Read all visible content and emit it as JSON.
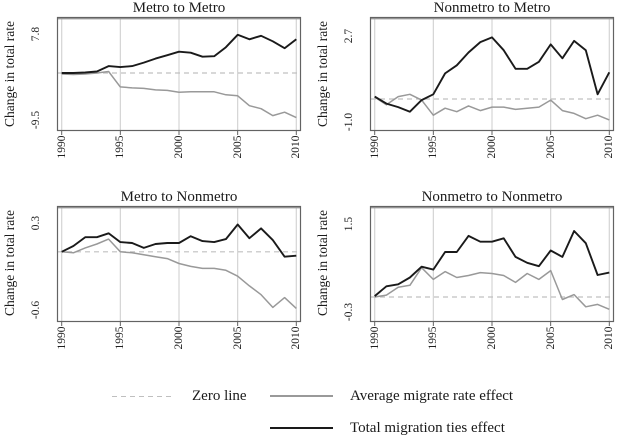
{
  "figure_title": "",
  "colors": {
    "background": "#ffffff",
    "grid": "#d4d4d4",
    "zero_line": "#c0c0c0",
    "frame": "#636363",
    "frame_top": "#9a9a9a",
    "series_total": "#1a1a1a",
    "series_average": "#999999",
    "text": "#1a1a1a"
  },
  "legend": {
    "position": "bottom",
    "items": [
      {
        "label": "Zero line",
        "style": "dashed",
        "color": "#bfbfbf"
      },
      {
        "label": "Average migrate rate effect",
        "style": "solid",
        "color": "#999999"
      },
      {
        "label": "Total migration ties effect",
        "style": "solid",
        "color": "#1a1a1a"
      }
    ]
  },
  "chart_data": [
    {
      "type": "line",
      "title": "Metro to Metro",
      "xlabel": "",
      "ylabel": "Change in total rate",
      "grid": "vertical",
      "zero_line": true,
      "xlim": [
        1989.6,
        2010.4
      ],
      "ylim": [
        -11.7,
        11.3
      ],
      "x_ticks": [
        1990,
        1995,
        2000,
        2005,
        2010
      ],
      "y_ticks": [
        {
          "value": 7.8,
          "label": "7.8"
        },
        {
          "value": -9.5,
          "label": "-9.5"
        }
      ],
      "x": [
        1990,
        1991,
        1992,
        1993,
        1994,
        1995,
        1996,
        1997,
        1998,
        1999,
        2000,
        2001,
        2002,
        2003,
        2004,
        2005,
        2006,
        2007,
        2008,
        2009,
        2010
      ],
      "series": [
        {
          "name": "Average migrate rate effect",
          "color": "#999999",
          "width": 1.5,
          "values": [
            -0.2,
            -0.3,
            -0.2,
            0.0,
            0.3,
            -2.8,
            -3.0,
            -3.1,
            -3.4,
            -3.5,
            -3.9,
            -3.8,
            -3.8,
            -3.8,
            -4.4,
            -4.6,
            -6.6,
            -7.2,
            -8.6,
            -7.9,
            -9.0
          ]
        },
        {
          "name": "Total migration ties effect",
          "color": "#1a1a1a",
          "width": 1.9,
          "values": [
            0.0,
            0.0,
            0.1,
            0.3,
            1.4,
            1.2,
            1.4,
            2.1,
            2.9,
            3.6,
            4.3,
            4.1,
            3.3,
            3.4,
            5.2,
            7.7,
            6.8,
            7.5,
            6.4,
            5.0,
            6.8
          ]
        }
      ]
    },
    {
      "type": "line",
      "title": "Nonmetro to Metro",
      "xlabel": "",
      "ylabel": "Change in total rate",
      "grid": "vertical",
      "zero_line": true,
      "xlim": [
        1989.6,
        2010.4
      ],
      "ylim": [
        -1.38,
        3.53
      ],
      "x_ticks": [
        1990,
        1995,
        2000,
        2005,
        2010
      ],
      "y_ticks": [
        {
          "value": 2.7,
          "label": "2.7"
        },
        {
          "value": -1.0,
          "label": "-1.0"
        }
      ],
      "x": [
        1990,
        1991,
        1992,
        1993,
        1994,
        1995,
        1996,
        1997,
        1998,
        1999,
        2000,
        2001,
        2002,
        2003,
        2004,
        2005,
        2006,
        2007,
        2008,
        2009,
        2010
      ],
      "series": [
        {
          "name": "Average migrate rate effect",
          "color": "#999999",
          "width": 1.5,
          "values": [
            0.08,
            -0.25,
            0.1,
            0.2,
            -0.05,
            -0.7,
            -0.4,
            -0.55,
            -0.3,
            -0.5,
            -0.35,
            -0.35,
            -0.45,
            -0.4,
            -0.35,
            -0.05,
            -0.5,
            -0.62,
            -0.85,
            -0.7,
            -0.9
          ]
        },
        {
          "name": "Total migration ties effect",
          "color": "#1a1a1a",
          "width": 1.9,
          "values": [
            0.1,
            -0.2,
            -0.35,
            -0.55,
            -0.05,
            0.2,
            1.1,
            1.45,
            2.0,
            2.45,
            2.65,
            2.1,
            1.3,
            1.3,
            1.6,
            2.35,
            1.75,
            2.5,
            2.1,
            0.2,
            1.15
          ]
        }
      ]
    },
    {
      "type": "line",
      "title": "Metro to Nonmetro",
      "xlabel": "",
      "ylabel": "Change in total rate",
      "grid": "vertical",
      "zero_line": true,
      "xlim": [
        1989.6,
        2010.4
      ],
      "ylim": [
        -0.72,
        0.47
      ],
      "x_ticks": [
        1990,
        1995,
        2000,
        2005,
        2010
      ],
      "y_ticks": [
        {
          "value": 0.3,
          "label": "0.3"
        },
        {
          "value": -0.6,
          "label": "-0.6"
        }
      ],
      "x": [
        1990,
        1991,
        1992,
        1993,
        1994,
        1995,
        1996,
        1997,
        1998,
        1999,
        2000,
        2001,
        2002,
        2003,
        2004,
        2005,
        2006,
        2007,
        2008,
        2009,
        2010
      ],
      "series": [
        {
          "name": "Average migrate rate effect",
          "color": "#999999",
          "width": 1.5,
          "values": [
            0.0,
            -0.01,
            0.04,
            0.08,
            0.13,
            0.0,
            -0.01,
            -0.03,
            -0.05,
            -0.07,
            -0.12,
            -0.15,
            -0.17,
            -0.17,
            -0.19,
            -0.25,
            -0.35,
            -0.44,
            -0.57,
            -0.47,
            -0.58
          ]
        },
        {
          "name": "Total migration ties effect",
          "color": "#1a1a1a",
          "width": 1.9,
          "values": [
            0.0,
            0.06,
            0.15,
            0.15,
            0.19,
            0.1,
            0.09,
            0.04,
            0.08,
            0.09,
            0.09,
            0.16,
            0.11,
            0.1,
            0.13,
            0.28,
            0.14,
            0.24,
            0.12,
            -0.05,
            -0.04
          ]
        }
      ]
    },
    {
      "type": "line",
      "title": "Nonmetro to Nonmetro",
      "xlabel": "",
      "ylabel": "Change in total rate",
      "grid": "vertical",
      "zero_line": true,
      "xlim": [
        1989.6,
        2010.4
      ],
      "ylim": [
        -0.51,
        1.86
      ],
      "x_ticks": [
        1990,
        1995,
        2000,
        2005,
        2010
      ],
      "y_ticks": [
        {
          "value": 1.5,
          "label": "1.5"
        },
        {
          "value": -0.3,
          "label": "-0.3"
        }
      ],
      "x": [
        1990,
        1991,
        1992,
        1993,
        1994,
        1995,
        1996,
        1997,
        1998,
        1999,
        2000,
        2001,
        2002,
        2003,
        2004,
        2005,
        2006,
        2007,
        2008,
        2009,
        2010
      ],
      "series": [
        {
          "name": "Average migrate rate effect",
          "color": "#999999",
          "width": 1.5,
          "values": [
            0.0,
            0.04,
            0.2,
            0.24,
            0.6,
            0.36,
            0.52,
            0.4,
            0.44,
            0.5,
            0.48,
            0.44,
            0.3,
            0.48,
            0.36,
            0.54,
            -0.05,
            0.05,
            -0.2,
            -0.15,
            -0.25
          ]
        },
        {
          "name": "Total migration ties effect",
          "color": "#1a1a1a",
          "width": 1.9,
          "values": [
            0.02,
            0.22,
            0.26,
            0.4,
            0.62,
            0.56,
            0.92,
            0.92,
            1.25,
            1.13,
            1.13,
            1.2,
            0.82,
            0.7,
            0.63,
            0.95,
            0.82,
            1.35,
            1.1,
            0.45,
            0.5
          ]
        }
      ]
    }
  ]
}
